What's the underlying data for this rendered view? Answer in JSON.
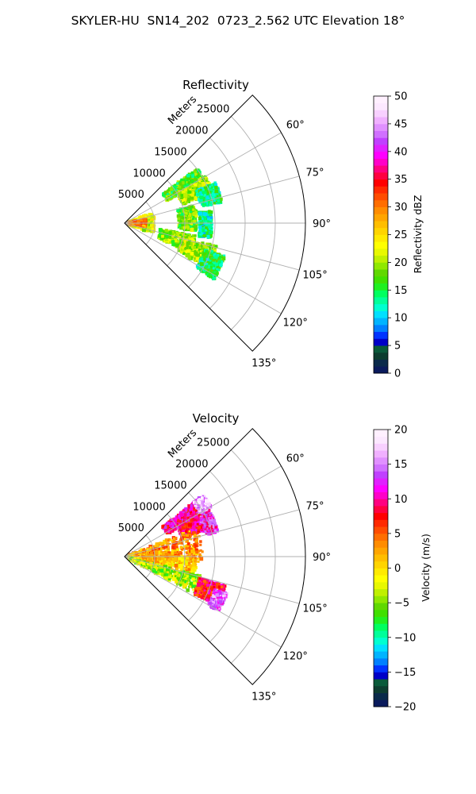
{
  "title": "SKYLER-HU  SN14_202  0723_2.562 UTC Elevation 18°",
  "chart_data": [
    {
      "type": "heatmap",
      "title": "Reflectivity",
      "projection": "polar sector",
      "radial_label": "Meters",
      "radial_ticks": [
        "5000",
        "10000",
        "15000",
        "20000",
        "25000"
      ],
      "angular_ticks": [
        "60°",
        "75°",
        "90°",
        "105°",
        "120°",
        "135°"
      ],
      "azimuth_range_deg": [
        45,
        135
      ],
      "range_max_m": 30000,
      "colorbar": {
        "label": "Reflectivity dBZ",
        "min": 0,
        "max": 50,
        "ticks": [
          "0",
          "5",
          "10",
          "15",
          "20",
          "25",
          "30",
          "35",
          "40",
          "45",
          "50"
        ],
        "colors": [
          "#0a1a5c",
          "#0a2a4a",
          "#0d3d2f",
          "#0a5a3a",
          "#0000c8",
          "#0033ff",
          "#0080ff",
          "#00b4ff",
          "#00e0ff",
          "#00ffd0",
          "#00ff9a",
          "#00ff60",
          "#20f020",
          "#40e000",
          "#60d800",
          "#90e800",
          "#c0f000",
          "#e8f800",
          "#ffff00",
          "#ffea00",
          "#ffd400",
          "#ffbe00",
          "#ffa500",
          "#ff8c00",
          "#ff6e00",
          "#ff4c00",
          "#ff2a00",
          "#ff0000",
          "#ff0040",
          "#ff0080",
          "#ff00c8",
          "#ff00ff",
          "#e020ff",
          "#c040ff",
          "#d070ff",
          "#e090ff",
          "#f0b0ff",
          "#f8d0ff",
          "#fce8ff",
          "#fff0ff"
        ]
      },
      "field": [
        {
          "az": [
            53,
            62
          ],
          "r": [
            8000,
            15000
          ],
          "value": 17
        },
        {
          "az": [
            60,
            72
          ],
          "r": [
            10000,
            15500
          ],
          "value": 20
        },
        {
          "az": [
            66,
            78
          ],
          "r": [
            13000,
            16500
          ],
          "value": 14
        },
        {
          "az": [
            76,
            96
          ],
          "r": [
            9000,
            12000
          ],
          "value": 18
        },
        {
          "az": [
            82,
            100
          ],
          "r": [
            12500,
            14500
          ],
          "value": 13
        },
        {
          "az": [
            100,
            114
          ],
          "r": [
            6000,
            12000
          ],
          "value": 19
        },
        {
          "az": [
            104,
            118
          ],
          "r": [
            10000,
            16000
          ],
          "value": 21
        },
        {
          "az": [
            108,
            122
          ],
          "r": [
            14000,
            17500
          ],
          "value": 15
        },
        {
          "az": [
            70,
            110
          ],
          "r": [
            200,
            5000
          ],
          "value": 22
        },
        {
          "az": [
            80,
            100
          ],
          "r": [
            500,
            3500
          ],
          "value": 30
        }
      ]
    },
    {
      "type": "heatmap",
      "title": "Velocity",
      "projection": "polar sector",
      "radial_label": "Meters",
      "radial_ticks": [
        "5000",
        "10000",
        "15000",
        "20000",
        "25000"
      ],
      "angular_ticks": [
        "60°",
        "75°",
        "90°",
        "105°",
        "120°",
        "135°"
      ],
      "azimuth_range_deg": [
        45,
        135
      ],
      "range_max_m": 30000,
      "colorbar": {
        "label": "Velocity (m/s)",
        "min": -20,
        "max": 20,
        "ticks": [
          "−20",
          "−15",
          "−10",
          "−5",
          "0",
          "5",
          "10",
          "15",
          "20"
        ],
        "colors": [
          "#0a1a5c",
          "#0a2a4a",
          "#0d3d2f",
          "#0a5a3a",
          "#0000c8",
          "#0033ff",
          "#0080ff",
          "#00b4ff",
          "#00e0ff",
          "#00ffd0",
          "#00ff9a",
          "#00ff60",
          "#20f020",
          "#40e000",
          "#60d800",
          "#90e800",
          "#c0f000",
          "#e8f800",
          "#ffff00",
          "#ffea00",
          "#ffd400",
          "#ffbe00",
          "#ffa500",
          "#ff8c00",
          "#ff6e00",
          "#ff4c00",
          "#ff2a00",
          "#ff0000",
          "#ff0040",
          "#ff0080",
          "#ff00c8",
          "#ff00ff",
          "#e020ff",
          "#c040ff",
          "#d070ff",
          "#e090ff",
          "#f0b0ff",
          "#f8d0ff",
          "#fce8ff",
          "#fff0ff"
        ]
      },
      "field": [
        {
          "az": [
            52,
            62
          ],
          "r": [
            8000,
            16000
          ],
          "value": 10
        },
        {
          "az": [
            60,
            72
          ],
          "r": [
            10000,
            15500
          ],
          "value": 9
        },
        {
          "az": [
            63,
            75
          ],
          "r": [
            14000,
            16000
          ],
          "value": 12
        },
        {
          "az": [
            52,
            60
          ],
          "r": [
            14500,
            16500
          ],
          "value": 16
        },
        {
          "az": [
            68,
            95
          ],
          "r": [
            200,
            13000
          ],
          "value": 3
        },
        {
          "az": [
            90,
            104
          ],
          "r": [
            200,
            12000
          ],
          "value": 1
        },
        {
          "az": [
            104,
            118
          ],
          "r": [
            200,
            13000
          ],
          "value": -4
        },
        {
          "az": [
            106,
            118
          ],
          "r": [
            13000,
            17500
          ],
          "value": 8
        },
        {
          "az": [
            110,
            120
          ],
          "r": [
            16000,
            18000
          ],
          "value": 14
        }
      ]
    }
  ]
}
